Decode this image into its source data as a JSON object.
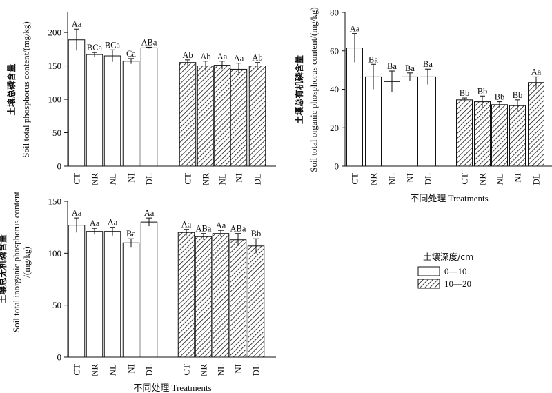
{
  "chart_data": [
    {
      "type": "bar",
      "ylabel_cn": "土壤总磷含量",
      "ylabel_en": "Soil total phosphorus content/(mg/kg)",
      "xlabel": "",
      "ylim": [
        0,
        230
      ],
      "yticks": [
        0,
        50,
        100,
        150,
        200
      ],
      "categories": [
        "CT",
        "NR",
        "NL",
        "NI",
        "DL"
      ],
      "series": [
        {
          "name": "0—10",
          "values": [
            189,
            167,
            165,
            157,
            177
          ],
          "errors": [
            16,
            3,
            9,
            4,
            1
          ],
          "labels": [
            "Aa",
            "BCa",
            "BCa",
            "Ca",
            "ABa"
          ]
        },
        {
          "name": "10—20",
          "values": [
            155,
            150,
            151,
            145,
            150
          ],
          "errors": [
            4,
            7,
            6,
            9,
            5
          ],
          "labels": [
            "Ab",
            "Ab",
            "Aa",
            "Aa",
            "Ab"
          ]
        }
      ]
    },
    {
      "type": "bar",
      "ylabel_cn": "土壤总有机磷含量",
      "ylabel_en": "Soil total organic phosphorus content/(mg/kg)",
      "xlabel": "不同处理 Treatments",
      "ylim": [
        0,
        80
      ],
      "yticks": [
        0,
        20,
        40,
        60,
        80
      ],
      "categories": [
        "CT",
        "NR",
        "NL",
        "NI",
        "DL"
      ],
      "series": [
        {
          "name": "0—10",
          "values": [
            61.5,
            46.5,
            44,
            46.5,
            46.5
          ],
          "errors": [
            7.5,
            6.5,
            5.5,
            2,
            4
          ],
          "labels": [
            "Aa",
            "Ba",
            "Ba",
            "Ba",
            "Ba"
          ]
        },
        {
          "name": "10—20",
          "values": [
            34.5,
            33.5,
            32,
            31.5,
            43.5
          ],
          "errors": [
            1,
            3,
            1.5,
            3,
            3
          ],
          "labels": [
            "Bb",
            "Bb",
            "Bb",
            "Bb",
            "Aa"
          ]
        }
      ]
    },
    {
      "type": "bar",
      "ylabel_cn": "土壤总无机磷含量",
      "ylabel_en": "Soil total inorganic phosphorus content /(mg/kg)",
      "xlabel": "不同处理 Treatments",
      "ylim": [
        0,
        150
      ],
      "yticks": [
        0,
        50,
        100,
        150
      ],
      "categories": [
        "CT",
        "NR",
        "NL",
        "NI",
        "DL"
      ],
      "series": [
        {
          "name": "0—10",
          "values": [
            127,
            121,
            121,
            110,
            130
          ],
          "errors": [
            7,
            3,
            4,
            4,
            4
          ],
          "labels": [
            "Aa",
            "Aa",
            "Aa",
            "Ba",
            "Aa"
          ]
        },
        {
          "name": "10—20",
          "values": [
            120,
            116,
            119,
            113,
            107
          ],
          "errors": [
            3,
            3,
            3,
            6,
            7
          ],
          "labels": [
            "Aa",
            "ABa",
            "Aa",
            "ABa",
            "Bb"
          ]
        }
      ]
    }
  ],
  "legend": {
    "title": "土壤深度/cm",
    "items": [
      "0—10",
      "10—20"
    ]
  }
}
